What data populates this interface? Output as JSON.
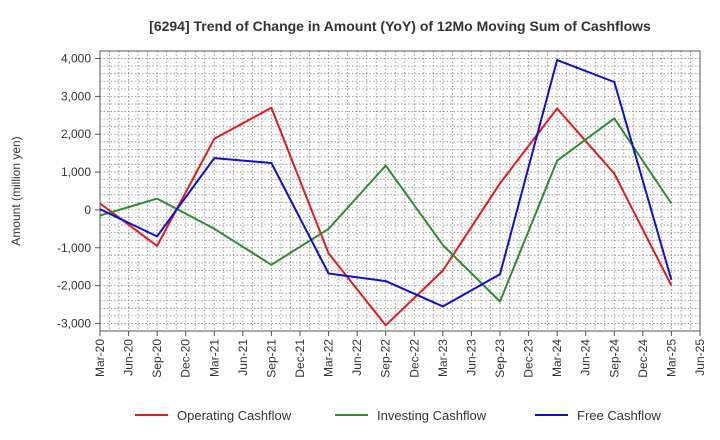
{
  "chart_data": {
    "type": "line",
    "title": "[6294]  Trend of Change in Amount (YoY) of 12Mo Moving Sum of Cashflows",
    "ylabel": "Amount (million yen)",
    "xlabel": "",
    "ylim": [
      -3200,
      4200
    ],
    "yticks": [
      -3000,
      -2000,
      -1000,
      0,
      1000,
      2000,
      3000,
      4000
    ],
    "ytick_labels": [
      "-3,000",
      "-2,000",
      "-1,000",
      "0",
      "1,000",
      "2,000",
      "3,000",
      "4,000"
    ],
    "categories": [
      "Mar-20",
      "Jun-20",
      "Sep-20",
      "Dec-20",
      "Mar-21",
      "Jun-21",
      "Sep-21",
      "Dec-21",
      "Mar-22",
      "Jun-22",
      "Sep-22",
      "Dec-22",
      "Mar-23",
      "Jun-23",
      "Sep-23",
      "Dec-23",
      "Mar-24",
      "Jun-24",
      "Sep-24",
      "Dec-24",
      "Mar-25",
      "Jun-25"
    ],
    "grid": true,
    "legend_position": "bottom",
    "series": [
      {
        "name": "Operating Cashflow",
        "color": "#e31a1c",
        "points": [
          [
            0,
            170
          ],
          [
            2,
            -950
          ],
          [
            4,
            1880
          ],
          [
            6,
            2700
          ],
          [
            8,
            -1150
          ],
          [
            10,
            -3050
          ],
          [
            12,
            -1600
          ],
          [
            14,
            700
          ],
          [
            16,
            2680
          ],
          [
            18,
            960
          ],
          [
            20,
            -2000
          ]
        ]
      },
      {
        "name": "Investing Cashflow",
        "color": "#2e8b2e",
        "points": [
          [
            0,
            -150
          ],
          [
            2,
            300
          ],
          [
            4,
            -500
          ],
          [
            6,
            -1450
          ],
          [
            8,
            -500
          ],
          [
            10,
            1170
          ],
          [
            12,
            -930
          ],
          [
            14,
            -2420
          ],
          [
            16,
            1300
          ],
          [
            18,
            2420
          ],
          [
            20,
            170
          ]
        ]
      },
      {
        "name": "Free Cashflow",
        "color": "#1010cc",
        "points": [
          [
            0,
            20
          ],
          [
            2,
            -700
          ],
          [
            4,
            1370
          ],
          [
            6,
            1240
          ],
          [
            8,
            -1680
          ],
          [
            10,
            -1880
          ],
          [
            12,
            -2550
          ],
          [
            14,
            -1700
          ],
          [
            16,
            3960
          ],
          [
            18,
            3380
          ],
          [
            20,
            -1850
          ]
        ]
      }
    ]
  }
}
